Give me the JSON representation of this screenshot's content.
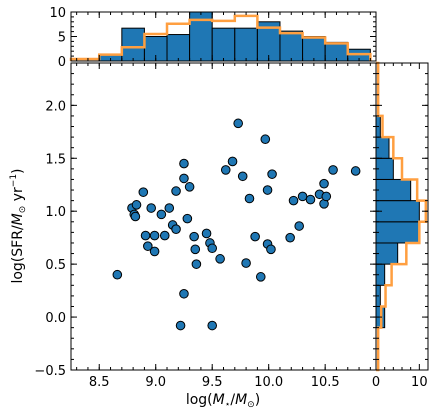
{
  "chart_data": [
    {
      "type": "scatter",
      "xlabel_parts": [
        "log(",
        "M",
        "⋆",
        "/",
        "M",
        "⊙",
        ")"
      ],
      "ylabel_parts": [
        "log(SFR/",
        "M",
        "⊙",
        " yr",
        "−1",
        ")"
      ],
      "xlim": [
        8.25,
        10.95
      ],
      "ylim": [
        -0.5,
        2.4
      ],
      "xticks": [
        8.5,
        9.0,
        9.5,
        10.0,
        10.5
      ],
      "xtick_labels": [
        "8.5",
        "9.0",
        "9.5",
        "10.0",
        "10.5"
      ],
      "yticks": [
        -0.5,
        0.0,
        0.5,
        1.0,
        1.5,
        2.0
      ],
      "ytick_labels": [
        "−0.5",
        "0.0",
        "0.5",
        "1.0",
        "1.5",
        "2.0"
      ],
      "marker_color": "#1f77b4",
      "points": [
        [
          8.66,
          0.4
        ],
        [
          8.79,
          1.03
        ],
        [
          8.81,
          0.97
        ],
        [
          8.83,
          1.06
        ],
        [
          8.82,
          0.95
        ],
        [
          8.89,
          1.18
        ],
        [
          8.91,
          0.77
        ],
        [
          8.93,
          0.67
        ],
        [
          8.96,
          1.03
        ],
        [
          8.99,
          0.77
        ],
        [
          8.99,
          0.62
        ],
        [
          9.05,
          0.97
        ],
        [
          9.08,
          0.77
        ],
        [
          9.12,
          1.03
        ],
        [
          9.15,
          0.87
        ],
        [
          9.18,
          1.19
        ],
        [
          9.18,
          0.83
        ],
        [
          9.22,
          -0.08
        ],
        [
          9.25,
          1.31
        ],
        [
          9.25,
          1.45
        ],
        [
          9.25,
          0.22
        ],
        [
          9.28,
          0.93
        ],
        [
          9.3,
          1.23
        ],
        [
          9.34,
          0.76
        ],
        [
          9.35,
          0.64
        ],
        [
          9.36,
          0.5
        ],
        [
          9.45,
          0.79
        ],
        [
          9.48,
          0.7
        ],
        [
          9.5,
          0.65
        ],
        [
          9.5,
          -0.08
        ],
        [
          9.57,
          0.55
        ],
        [
          9.62,
          1.39
        ],
        [
          9.68,
          1.47
        ],
        [
          9.73,
          1.83
        ],
        [
          9.77,
          1.33
        ],
        [
          9.8,
          0.51
        ],
        [
          9.83,
          1.12
        ],
        [
          9.88,
          0.76
        ],
        [
          9.93,
          0.38
        ],
        [
          9.97,
          1.68
        ],
        [
          9.99,
          0.69
        ],
        [
          9.99,
          1.2
        ],
        [
          10.02,
          0.64
        ],
        [
          10.03,
          1.35
        ],
        [
          10.19,
          0.75
        ],
        [
          10.22,
          1.1
        ],
        [
          10.27,
          0.86
        ],
        [
          10.3,
          1.14
        ],
        [
          10.37,
          1.11
        ],
        [
          10.45,
          1.16
        ],
        [
          10.49,
          1.07
        ],
        [
          10.49,
          1.26
        ],
        [
          10.51,
          1.14
        ],
        [
          10.57,
          1.39
        ],
        [
          10.77,
          1.38
        ]
      ]
    },
    {
      "type": "histogram",
      "orientation": "vertical",
      "axis": "x",
      "ylim": [
        0,
        10
      ],
      "yticks": [
        0,
        5,
        10
      ],
      "ytick_labels": [
        "0",
        "5",
        "10"
      ],
      "bins": [
        8.5,
        8.7,
        8.9,
        9.1,
        9.3,
        9.5,
        9.7,
        9.9,
        10.1,
        10.3,
        10.5,
        10.7,
        10.9
      ],
      "filled_counts": [
        1.3,
        6.7,
        5.0,
        5.4,
        10.0,
        6.7,
        6.7,
        8.0,
        6.1,
        5.0,
        3.8,
        2.4
      ],
      "filled_color": "#1f77b4",
      "step_color": "#ff9f40",
      "step_bins": [
        8.25,
        8.5,
        8.7,
        8.9,
        9.1,
        9.3,
        9.5,
        9.7,
        9.9,
        10.1,
        10.3,
        10.5,
        10.7,
        10.9
      ],
      "step_counts": [
        0.4,
        1.3,
        2.8,
        5.5,
        7.6,
        8.4,
        8.2,
        9.2,
        6.8,
        5.7,
        4.8,
        3.6,
        1.4
      ]
    },
    {
      "type": "histogram",
      "orientation": "horizontal",
      "axis": "y",
      "xlim": [
        0,
        12
      ],
      "xticks": [
        0,
        10
      ],
      "xtick_labels": [
        "0",
        "10"
      ],
      "bins": [
        -0.1,
        0.1,
        0.3,
        0.5,
        0.7,
        0.9,
        1.1,
        1.3,
        1.5,
        1.7,
        1.9
      ],
      "filled_counts": [
        2.0,
        1.0,
        2.0,
        5.0,
        10.0,
        10.0,
        8.0,
        4.0,
        3.0,
        1.0
      ],
      "filled_color": "#1f77b4",
      "step_color": "#ff9f40",
      "step_bins": [
        -0.5,
        -0.1,
        0.1,
        0.3,
        0.5,
        0.7,
        0.9,
        1.1,
        1.3,
        1.5,
        1.7,
        1.9,
        2.4
      ],
      "step_counts": [
        0.5,
        1.2,
        2.2,
        3.6,
        7.0,
        10.0,
        11.5,
        9.5,
        6.0,
        4.0,
        1.5,
        0.5
      ]
    }
  ]
}
